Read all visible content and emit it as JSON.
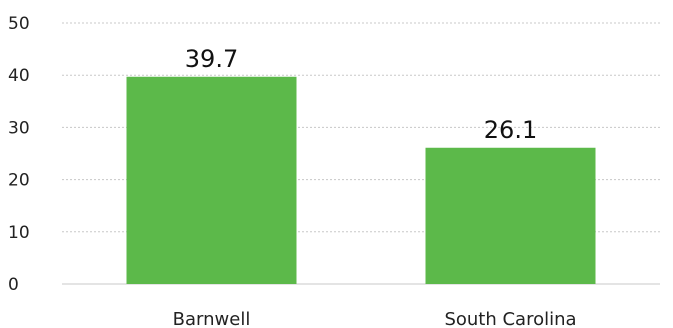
{
  "chart_data": {
    "type": "bar",
    "categories": [
      "Barnwell",
      "South Carolina"
    ],
    "values": [
      39.7,
      26.1
    ],
    "data_labels": [
      "39.7",
      "26.1"
    ],
    "title": "",
    "xlabel": "",
    "ylabel": "",
    "ylim": [
      0,
      50
    ],
    "yticks": [
      "0",
      "10",
      "20",
      "30",
      "40",
      "50"
    ],
    "grid": true,
    "legend": "none",
    "bar_color": "#5cb94a"
  }
}
